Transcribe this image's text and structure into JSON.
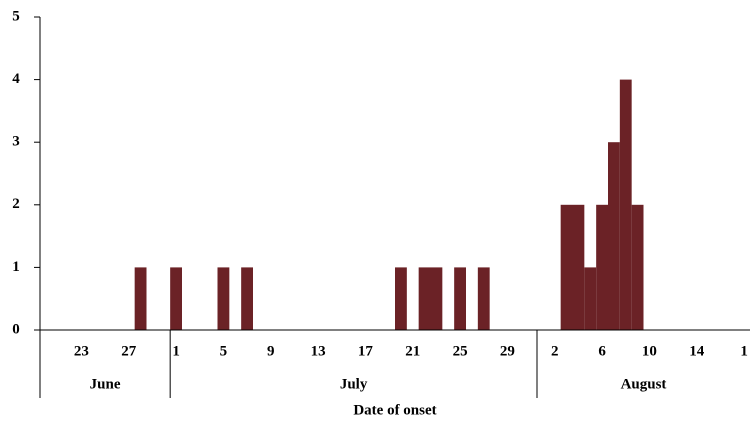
{
  "chart_data": {
    "type": "bar",
    "x_label": "Date of onset",
    "categories": [
      null,
      null,
      null,
      "23",
      null,
      null,
      null,
      "27",
      null,
      null,
      null,
      "1",
      null,
      null,
      null,
      "5",
      null,
      null,
      null,
      "9",
      null,
      null,
      null,
      "13",
      null,
      null,
      null,
      "17",
      null,
      null,
      null,
      "21",
      null,
      null,
      null,
      "25",
      null,
      null,
      null,
      "29",
      null,
      null,
      null,
      "2",
      null,
      null,
      null,
      "6",
      null,
      null,
      null,
      "10",
      null,
      null,
      null,
      "14",
      null,
      null,
      null,
      "1"
    ],
    "values": [
      0,
      0,
      0,
      0,
      0,
      0,
      0,
      0,
      1,
      0,
      0,
      1,
      0,
      0,
      0,
      1,
      0,
      1,
      0,
      0,
      0,
      0,
      0,
      0,
      0,
      0,
      0,
      0,
      0,
      0,
      1,
      0,
      1,
      1,
      0,
      1,
      0,
      1,
      0,
      0,
      0,
      0,
      0,
      0,
      2,
      2,
      1,
      2,
      3,
      4,
      2,
      0,
      0,
      0,
      0,
      0,
      0,
      0,
      0,
      0
    ],
    "groups": [
      {
        "label": "June",
        "count": 11
      },
      {
        "label": "July",
        "count": 31
      },
      {
        "label": "August",
        "count": 18
      }
    ],
    "color": "#6b2226",
    "ylim": [
      0,
      5
    ],
    "yticks": [
      0,
      1,
      2,
      3,
      4,
      5
    ],
    "grid": false
  }
}
